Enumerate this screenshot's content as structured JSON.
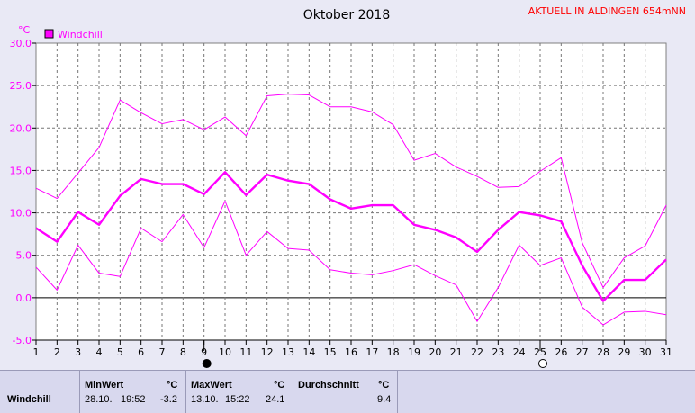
{
  "header": {
    "title": "Oktober 2018",
    "station": "AKTUELL IN ALDINGEN 654mNN",
    "unit": "°C"
  },
  "legend": {
    "label": "Windchill",
    "color": "#ff00ff"
  },
  "chart_data": {
    "type": "line",
    "title": "Oktober 2018",
    "ylabel": "°C",
    "xlim": [
      1,
      31
    ],
    "ylim": [
      -5,
      30
    ],
    "yticks": [
      "30.0",
      "25.0",
      "20.0",
      "15.0",
      "10.0",
      "5.0",
      "0.0",
      "-5.0"
    ],
    "x": [
      1,
      2,
      3,
      4,
      5,
      6,
      7,
      8,
      9,
      10,
      11,
      12,
      13,
      14,
      15,
      16,
      17,
      18,
      19,
      20,
      21,
      22,
      23,
      24,
      25,
      26,
      27,
      28,
      29,
      30,
      31
    ],
    "grid": true,
    "legend_position": "top-left",
    "series": [
      {
        "name": "Windchill",
        "role": "max",
        "color": "#ff00ff",
        "values": [
          12.9,
          11.7,
          14.7,
          17.7,
          23.3,
          21.8,
          20.5,
          21.0,
          19.8,
          21.3,
          19.1,
          23.8,
          24.0,
          23.9,
          22.5,
          22.5,
          21.9,
          20.4,
          16.2,
          17.0,
          15.4,
          14.3,
          13.0,
          13.1,
          14.9,
          16.5,
          6.5,
          1.2,
          4.7,
          6.1,
          10.9
        ]
      },
      {
        "name": "Windchill",
        "role": "mean",
        "color": "#ff00ff",
        "values": [
          8.2,
          6.6,
          10.1,
          8.6,
          12.0,
          14.0,
          13.4,
          13.4,
          12.2,
          14.8,
          12.1,
          14.5,
          13.8,
          13.4,
          11.6,
          10.5,
          10.9,
          10.9,
          8.6,
          8.0,
          7.1,
          5.4,
          8.0,
          10.1,
          9.7,
          9.0,
          3.8,
          -0.4,
          2.1,
          2.1,
          4.5
        ]
      },
      {
        "name": "Windchill",
        "role": "min",
        "color": "#ff00ff",
        "values": [
          3.6,
          0.9,
          6.2,
          2.9,
          2.5,
          8.2,
          6.6,
          9.8,
          5.9,
          11.4,
          5.0,
          7.8,
          5.8,
          5.6,
          3.3,
          2.9,
          2.7,
          3.2,
          3.9,
          2.6,
          1.5,
          -2.8,
          1.2,
          6.2,
          3.8,
          4.7,
          -1.1,
          -3.2,
          -1.7,
          -1.6,
          -2.0
        ]
      }
    ],
    "moon_markers": [
      {
        "day": 9,
        "phase": "new-moon"
      },
      {
        "day": 25,
        "phase": "full-moon"
      }
    ]
  },
  "stats": {
    "row_label": "Windchill",
    "min": {
      "header": "MinWert",
      "unit": "°C",
      "date": "28.10.",
      "time": "19:52",
      "value": "-3.2"
    },
    "max": {
      "header": "MaxWert",
      "unit": "°C",
      "date": "13.10.",
      "time": "15:22",
      "value": "24.1"
    },
    "avg": {
      "header": "Durchschnitt",
      "unit": "°C",
      "value": "9.4"
    }
  }
}
